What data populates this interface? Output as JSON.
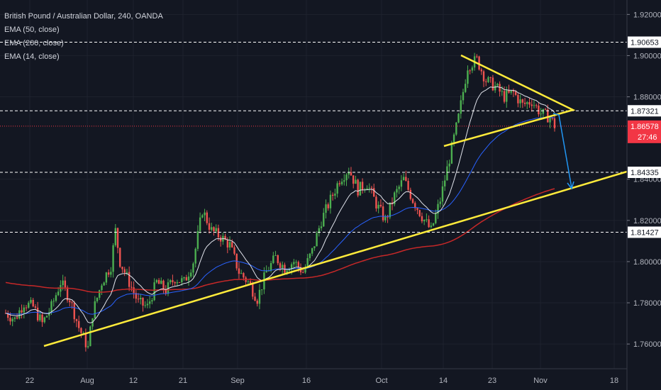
{
  "legend": {
    "title": "British Pound / Australian Dollar, 240, OANDA",
    "ema50": "EMA (50, close)",
    "ema200": "EMA (200, close)",
    "ema14": "EMA (14, close)"
  },
  "colors": {
    "background": "#131722",
    "up": "#26a69a",
    "up_bright": "#4caf50",
    "down": "#ef5350",
    "ema14": "#e0e3eb",
    "ema50": "#2962ff",
    "ema200": "#c62828",
    "trendline": "#ffeb3b",
    "arrow": "#2196f3",
    "current_price": "#f23645"
  },
  "chart_data": {
    "type": "candlestick",
    "symbol": "GBPAUD",
    "interval": "240",
    "y_axis_ticks": [
      "1.92000",
      "1.90000",
      "1.88000",
      "1.84000",
      "1.82000",
      "1.80000",
      "1.78000",
      "1.76000"
    ],
    "ylim": [
      1.748,
      1.927
    ],
    "x_axis_ticks": [
      "22",
      "Aug",
      "12",
      "21",
      "Sep",
      "16",
      "Oct",
      "14",
      "23",
      "Nov",
      "18"
    ],
    "horizontal_levels": [
      {
        "label": "1.90653",
        "value": 1.90653
      },
      {
        "label": "1.87321",
        "value": 1.87321
      },
      {
        "label": "1.84335",
        "value": 1.84335
      },
      {
        "label": "1.81427",
        "value": 1.81427
      }
    ],
    "current_price": {
      "label": "1.86578",
      "value": 1.86578,
      "countdown": "27:46"
    },
    "price_path": [
      [
        0,
        1.775
      ],
      [
        4,
        1.772
      ],
      [
        8,
        1.78
      ],
      [
        12,
        1.778
      ],
      [
        16,
        1.77
      ],
      [
        20,
        1.778
      ],
      [
        24,
        1.79
      ],
      [
        28,
        1.782
      ],
      [
        32,
        1.768
      ],
      [
        36,
        1.758
      ],
      [
        38,
        1.775
      ],
      [
        42,
        1.79
      ],
      [
        46,
        1.798
      ],
      [
        48,
        1.815
      ],
      [
        50,
        1.8
      ],
      [
        54,
        1.79
      ],
      [
        58,
        1.78
      ],
      [
        62,
        1.778
      ],
      [
        66,
        1.79
      ],
      [
        70,
        1.786
      ],
      [
        74,
        1.792
      ],
      [
        78,
        1.79
      ],
      [
        82,
        1.8
      ],
      [
        86,
        1.825
      ],
      [
        90,
        1.815
      ],
      [
        94,
        1.812
      ],
      [
        98,
        1.808
      ],
      [
        102,
        1.795
      ],
      [
        106,
        1.79
      ],
      [
        110,
        1.782
      ],
      [
        114,
        1.795
      ],
      [
        118,
        1.802
      ],
      [
        122,
        1.797
      ],
      [
        126,
        1.8
      ],
      [
        130,
        1.795
      ],
      [
        134,
        1.805
      ],
      [
        138,
        1.82
      ],
      [
        142,
        1.83
      ],
      [
        146,
        1.84
      ],
      [
        150,
        1.845
      ],
      [
        154,
        1.835
      ],
      [
        158,
        1.838
      ],
      [
        162,
        1.828
      ],
      [
        166,
        1.82
      ],
      [
        170,
        1.832
      ],
      [
        174,
        1.84
      ],
      [
        178,
        1.83
      ],
      [
        182,
        1.822
      ],
      [
        186,
        1.815
      ],
      [
        190,
        1.83
      ],
      [
        194,
        1.85
      ],
      [
        198,
        1.87
      ],
      [
        202,
        1.895
      ],
      [
        206,
        1.898
      ],
      [
        210,
        1.888
      ],
      [
        214,
        1.885
      ],
      [
        218,
        1.88
      ],
      [
        222,
        1.882
      ],
      [
        226,
        1.876
      ],
      [
        230,
        1.878
      ],
      [
        234,
        1.872
      ],
      [
        238,
        1.87
      ],
      [
        240,
        1.866
      ]
    ]
  }
}
